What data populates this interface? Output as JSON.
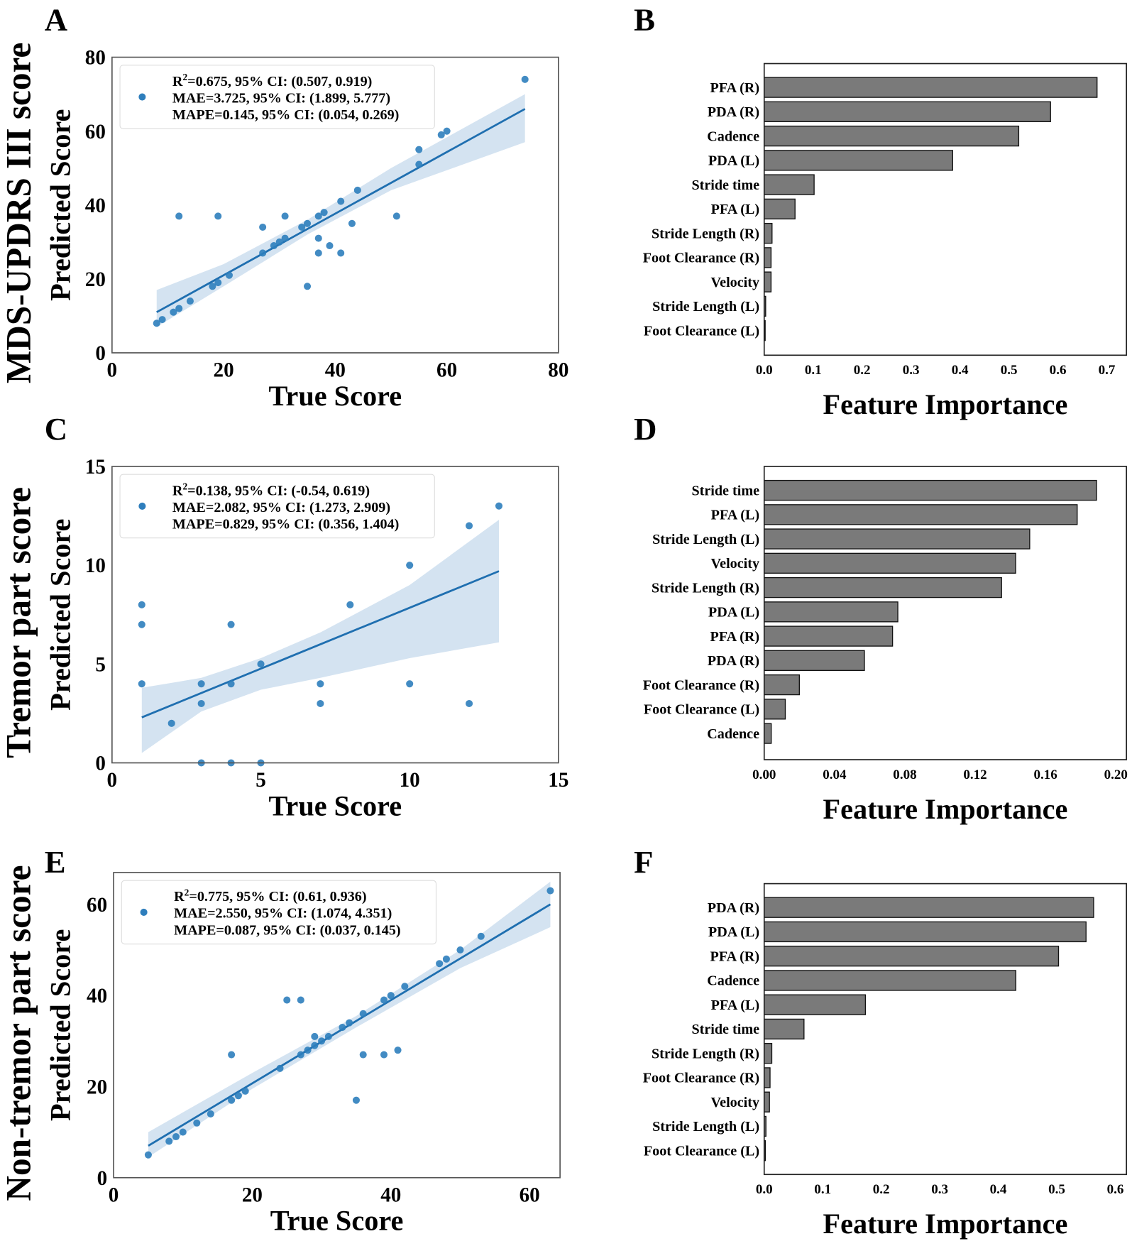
{
  "chart_data": [
    {
      "panel": "A",
      "type": "scatter",
      "row_label": "MDS-UPDRS III score",
      "xlabel": "True Score",
      "ylabel": "Predicted Score",
      "xlim": [
        0,
        80
      ],
      "ylim": [
        0,
        80
      ],
      "xticks": [
        "0",
        "20",
        "40",
        "60",
        "80"
      ],
      "yticks": [
        "0",
        "20",
        "40",
        "60",
        "80"
      ],
      "legend": [
        "R2=0.675, 95% CI: (0.507, 0.919)",
        "MAE=3.725, 95% CI: (1.899, 5.777)",
        "MAPE=0.145, 95% CI: (0.054, 0.269)"
      ],
      "legend_placement": "top-left",
      "points": [
        [
          8,
          8
        ],
        [
          9,
          9
        ],
        [
          11,
          11
        ],
        [
          12,
          12
        ],
        [
          14,
          14
        ],
        [
          12,
          37
        ],
        [
          18,
          18
        ],
        [
          19,
          19
        ],
        [
          21,
          21
        ],
        [
          19,
          37
        ],
        [
          27,
          34
        ],
        [
          27,
          27
        ],
        [
          29,
          29
        ],
        [
          30,
          30
        ],
        [
          31,
          31
        ],
        [
          31,
          37
        ],
        [
          34,
          34
        ],
        [
          35,
          35
        ],
        [
          35,
          18
        ],
        [
          37,
          37
        ],
        [
          37,
          31
        ],
        [
          37,
          27
        ],
        [
          38,
          38
        ],
        [
          39,
          29
        ],
        [
          41,
          41
        ],
        [
          41,
          27
        ],
        [
          43,
          35
        ],
        [
          44,
          44
        ],
        [
          51,
          37
        ],
        [
          55,
          55
        ],
        [
          55,
          51
        ],
        [
          59,
          59
        ],
        [
          60,
          60
        ],
        [
          74,
          74
        ]
      ],
      "fit": [
        [
          8,
          11
        ],
        [
          74,
          66
        ]
      ],
      "band": {
        "x": [
          8,
          20,
          35,
          50,
          74
        ],
        "lo": [
          7,
          18,
          32,
          44,
          57
        ],
        "hi": [
          17,
          24,
          36,
          50,
          70
        ]
      }
    },
    {
      "panel": "B",
      "type": "bar",
      "xlabel": "Feature Importance",
      "xlim": [
        0,
        0.74
      ],
      "xticks": [
        "0.0",
        "0.1",
        "0.2",
        "0.3",
        "0.4",
        "0.5",
        "0.6",
        "0.7"
      ],
      "categories": [
        "PFA (R)",
        "PDA (R)",
        "Cadence",
        "PDA (L)",
        "Stride time",
        "PFA (L)",
        "Stride Length (R)",
        "Foot Clearance (R)",
        "Velocity",
        "Stride Length (L)",
        "Foot Clearance (L)"
      ],
      "values": [
        0.68,
        0.585,
        0.52,
        0.385,
        0.102,
        0.063,
        0.016,
        0.014,
        0.014,
        0.003,
        0.002
      ]
    },
    {
      "panel": "C",
      "type": "scatter",
      "row_label": "Tremor part score",
      "xlabel": "True Score",
      "ylabel": "Predicted Score",
      "xlim": [
        0,
        15
      ],
      "ylim": [
        0,
        15
      ],
      "xticks": [
        "0",
        "5",
        "10",
        "15"
      ],
      "yticks": [
        "0",
        "5",
        "10",
        "15"
      ],
      "legend": [
        "R2=0.138, 95% CI: (-0.54, 0.619)",
        "MAE=2.082, 95% CI: (1.273, 2.909)",
        "MAPE=0.829, 95% CI: (0.356, 1.404)"
      ],
      "legend_placement": "top-left",
      "points": [
        [
          1,
          8
        ],
        [
          1,
          7
        ],
        [
          1,
          4
        ],
        [
          2,
          2
        ],
        [
          3,
          4
        ],
        [
          3,
          3
        ],
        [
          3,
          0
        ],
        [
          4,
          7
        ],
        [
          4,
          4
        ],
        [
          4,
          0
        ],
        [
          5,
          5
        ],
        [
          5,
          0
        ],
        [
          7,
          4
        ],
        [
          7,
          3
        ],
        [
          8,
          8
        ],
        [
          10,
          10
        ],
        [
          10,
          4
        ],
        [
          12,
          12
        ],
        [
          12,
          3
        ],
        [
          13,
          13
        ]
      ],
      "fit": [
        [
          1,
          2.3
        ],
        [
          13,
          9.7
        ]
      ],
      "band": {
        "x": [
          1,
          3,
          5,
          7,
          10,
          13
        ],
        "lo": [
          0.5,
          2.6,
          3.7,
          4.3,
          5.3,
          6.1
        ],
        "hi": [
          3.8,
          4.3,
          5.3,
          6.6,
          9.0,
          12.3
        ]
      }
    },
    {
      "panel": "D",
      "type": "bar",
      "xlabel": "Feature Importance",
      "xlim": [
        0,
        0.206
      ],
      "xticks": [
        "0.00",
        "0.04",
        "0.08",
        "0.12",
        "0.16",
        "0.20"
      ],
      "categories": [
        "Stride time",
        "PFA (L)",
        "Stride Length (L)",
        "Velocity",
        "Stride Length (R)",
        "PDA (L)",
        "PFA (R)",
        "PDA (R)",
        "Foot Clearance (R)",
        "Foot Clearance (L)",
        "Cadence"
      ],
      "values": [
        0.189,
        0.178,
        0.151,
        0.143,
        0.135,
        0.076,
        0.073,
        0.057,
        0.02,
        0.012,
        0.004
      ]
    },
    {
      "panel": "E",
      "type": "scatter",
      "row_label": "Non-tremor part score",
      "xlabel": "True Score",
      "ylabel": "Predicted Score",
      "xlim": [
        0,
        64.4
      ],
      "ylim": [
        0,
        67
      ],
      "xticks": [
        "0",
        "20",
        "40",
        "60"
      ],
      "yticks": [
        "0",
        "20",
        "40",
        "60"
      ],
      "legend": [
        "R2=0.775, 95% CI: (0.61, 0.936)",
        "MAE=2.550, 95% CI: (1.074, 4.351)",
        "MAPE=0.087, 95% CI: (0.037, 0.145)"
      ],
      "legend_placement": "top-left",
      "points": [
        [
          5,
          5
        ],
        [
          8,
          8
        ],
        [
          9,
          9
        ],
        [
          10,
          10
        ],
        [
          12,
          12
        ],
        [
          14,
          14
        ],
        [
          17,
          17
        ],
        [
          17,
          27
        ],
        [
          18,
          18
        ],
        [
          19,
          19
        ],
        [
          24,
          24
        ],
        [
          25,
          39
        ],
        [
          27,
          39
        ],
        [
          27,
          27
        ],
        [
          28,
          28
        ],
        [
          29,
          29
        ],
        [
          29,
          31
        ],
        [
          30,
          30
        ],
        [
          31,
          31
        ],
        [
          33,
          33
        ],
        [
          34,
          34
        ],
        [
          35,
          17
        ],
        [
          36,
          36
        ],
        [
          36,
          27
        ],
        [
          39,
          39
        ],
        [
          39,
          27
        ],
        [
          40,
          40
        ],
        [
          41,
          28
        ],
        [
          42,
          42
        ],
        [
          47,
          47
        ],
        [
          48,
          48
        ],
        [
          50,
          50
        ],
        [
          53,
          53
        ],
        [
          63,
          63
        ]
      ],
      "fit": [
        [
          5,
          7
        ],
        [
          63,
          60
        ]
      ],
      "band": {
        "x": [
          5,
          20,
          35,
          50,
          63
        ],
        "lo": [
          4.5,
          19.5,
          33,
          46,
          55
        ],
        "hi": [
          10,
          23,
          35.5,
          50,
          65
        ]
      }
    },
    {
      "panel": "F",
      "type": "bar",
      "xlabel": "Feature Importance",
      "xlim": [
        0,
        0.619
      ],
      "xticks": [
        "0.0",
        "0.1",
        "0.2",
        "0.3",
        "0.4",
        "0.5",
        "0.6"
      ],
      "categories": [
        "PDA (R)",
        "PDA (L)",
        "PFA (R)",
        "Cadence",
        "PFA (L)",
        "Stride time",
        "Stride Length (R)",
        "Foot Clearance (R)",
        "Velocity",
        "Stride Length (L)",
        "Foot Clearance (L)"
      ],
      "values": [
        0.563,
        0.55,
        0.503,
        0.43,
        0.173,
        0.068,
        0.013,
        0.01,
        0.009,
        0.003,
        0.002
      ]
    }
  ],
  "colors": {
    "point": "#2e7ebc",
    "line": "#1f6fb0",
    "band": "#c9dcee",
    "bar": "#7a7a7a"
  }
}
